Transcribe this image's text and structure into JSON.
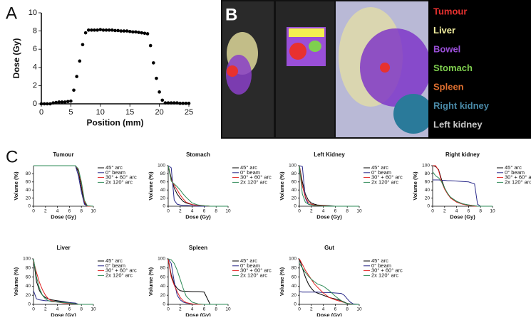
{
  "panel_labels": [
    "A",
    "B",
    "C"
  ],
  "panel_b": {
    "legend": [
      {
        "name": "Tumour",
        "color": "#e8312f"
      },
      {
        "name": "Liver",
        "color": "#f4f0a0"
      },
      {
        "name": "Bowel",
        "color": "#9a4fd8"
      },
      {
        "name": "Stomach",
        "color": "#7fd04f"
      },
      {
        "name": "Spleen",
        "color": "#e07030"
      },
      {
        "name": "Right kidney",
        "color": "#4a8aa8"
      },
      {
        "name": "Left kidney",
        "color": "#c8c8c8"
      }
    ]
  },
  "chart_data": [
    {
      "type": "scatter",
      "xlabel": "Position (mm)",
      "ylabel": "Dose (Gy)",
      "color": "#000000",
      "xlim": [
        0,
        25
      ],
      "xticks": [
        0,
        5,
        10,
        15,
        20,
        25
      ],
      "ylim": [
        0,
        10
      ],
      "yticks": [
        0,
        2,
        4,
        6,
        8,
        10
      ],
      "x": [
        0,
        0.5,
        1,
        1.5,
        2,
        2.5,
        3,
        3.5,
        4,
        4.5,
        5,
        5.5,
        6,
        6.5,
        7,
        7.5,
        8,
        8.5,
        9,
        9.5,
        10,
        10.5,
        11,
        11.5,
        12,
        12.5,
        13,
        13.5,
        14,
        14.5,
        15,
        15.5,
        16,
        16.5,
        17,
        17.5,
        18,
        18.5,
        19,
        19.5,
        20,
        20.5,
        21,
        21.5,
        22,
        22.5,
        23,
        23.5,
        24,
        24.5,
        25
      ],
      "values": [
        0,
        0,
        0,
        0,
        0.1,
        0.15,
        0.2,
        0.2,
        0.2,
        0.25,
        0.3,
        1.5,
        3,
        4.7,
        6.5,
        7.8,
        8.1,
        8.1,
        8.1,
        8.1,
        8.15,
        8.1,
        8.1,
        8.1,
        8.1,
        8.05,
        8.05,
        8,
        8,
        8,
        7.95,
        7.9,
        7.9,
        7.85,
        7.8,
        7.75,
        7.7,
        6.4,
        4.5,
        2.8,
        1.3,
        0.4,
        0.1,
        0.1,
        0.1,
        0.1,
        0.1,
        0.05,
        0.05,
        0.05,
        0.05
      ]
    },
    {
      "type": "line",
      "title": "Tumour",
      "xlabel": "Dose (Gy)",
      "ylabel": "Volume (%)",
      "xlim": [
        0,
        10
      ],
      "xticks": [
        0,
        2,
        4,
        6,
        8,
        10
      ],
      "ylim": [
        0,
        100
      ],
      "yticks": [
        0,
        20,
        40,
        60,
        80
      ],
      "x": [
        0,
        0.5,
        1,
        1.5,
        2,
        2.5,
        3,
        4,
        5,
        6,
        7,
        7.5,
        8,
        8.5,
        9,
        10
      ],
      "series": [
        {
          "name": "45° arc",
          "color": "#000000",
          "values": [
            100,
            100,
            100,
            100,
            100,
            100,
            100,
            100,
            100,
            100,
            100,
            85,
            45,
            8,
            0,
            0
          ]
        },
        {
          "name": "0° beam",
          "color": "#2a2a8a",
          "values": [
            100,
            100,
            100,
            100,
            100,
            100,
            100,
            100,
            100,
            100,
            100,
            75,
            35,
            5,
            0,
            0
          ]
        },
        {
          "name": "30° + 60° arc",
          "color": "#e02020",
          "values": [
            100,
            100,
            100,
            100,
            100,
            100,
            100,
            100,
            100,
            100,
            100,
            90,
            55,
            12,
            0,
            0
          ]
        },
        {
          "name": "2x 120° arc",
          "color": "#2e8b57",
          "values": [
            100,
            100,
            100,
            100,
            100,
            100,
            100,
            100,
            100,
            100,
            100,
            92,
            60,
            15,
            1,
            0
          ]
        }
      ]
    },
    {
      "type": "line",
      "title": "Stomach",
      "xlabel": "Dose (Gy)",
      "ylabel": "Volume (%)",
      "xlim": [
        0,
        10
      ],
      "xticks": [
        0,
        2,
        4,
        6,
        8,
        10
      ],
      "ylim": [
        0,
        100
      ],
      "yticks": [
        0,
        20,
        40,
        60,
        80,
        100
      ],
      "x": [
        0,
        0.5,
        1,
        1.5,
        2,
        2.5,
        3,
        4,
        5,
        6,
        7,
        7.5,
        8,
        8.5,
        9,
        10
      ],
      "series": [
        {
          "name": "45° arc",
          "color": "#000000",
          "values": [
            100,
            70,
            45,
            30,
            20,
            12,
            8,
            4,
            2,
            1,
            0,
            0,
            0,
            0,
            0,
            0
          ]
        },
        {
          "name": "0° beam",
          "color": "#2a2a8a",
          "values": [
            100,
            95,
            15,
            5,
            3,
            2,
            2,
            1,
            0,
            0,
            0,
            0,
            0,
            0,
            0,
            0
          ]
        },
        {
          "name": "30° + 60° arc",
          "color": "#e02020",
          "values": [
            100,
            65,
            52,
            40,
            28,
            18,
            10,
            4,
            2,
            1,
            0,
            0,
            0,
            0,
            0,
            0
          ]
        },
        {
          "name": "2x 120° arc",
          "color": "#2e8b57",
          "values": [
            100,
            62,
            55,
            48,
            40,
            30,
            22,
            8,
            3,
            1,
            0,
            0,
            0,
            0,
            0,
            0
          ]
        }
      ]
    },
    {
      "type": "line",
      "title": "Left Kidney",
      "xlabel": "Dose (Gy)",
      "ylabel": "Volume (%)",
      "xlim": [
        0,
        10
      ],
      "xticks": [
        0,
        2,
        4,
        6,
        8,
        10
      ],
      "ylim": [
        0,
        100
      ],
      "yticks": [
        0,
        20,
        40,
        60,
        80,
        100
      ],
      "x": [
        0,
        0.5,
        1,
        1.5,
        2,
        2.5,
        3,
        4,
        5,
        6,
        7,
        7.5,
        8,
        8.5,
        9,
        10
      ],
      "series": [
        {
          "name": "45° arc",
          "color": "#000000",
          "values": [
            100,
            60,
            30,
            15,
            8,
            5,
            3,
            2,
            1,
            0,
            0,
            0,
            0,
            0,
            0,
            0
          ]
        },
        {
          "name": "0° beam",
          "color": "#2a2a8a",
          "values": [
            100,
            98,
            20,
            5,
            3,
            2,
            1,
            0,
            0,
            0,
            0,
            0,
            0,
            0,
            0,
            0
          ]
        },
        {
          "name": "30° + 60° arc",
          "color": "#e02020",
          "values": [
            100,
            50,
            22,
            10,
            5,
            3,
            2,
            1,
            0,
            0,
            0,
            0,
            0,
            0,
            0,
            0
          ]
        },
        {
          "name": "2x 120° arc",
          "color": "#2e8b57",
          "values": [
            100,
            30,
            10,
            5,
            3,
            2,
            1,
            0,
            0,
            0,
            0,
            0,
            0,
            0,
            0,
            0
          ]
        }
      ]
    },
    {
      "type": "line",
      "title": "Right kidney",
      "xlabel": "Dose (Gy)",
      "ylabel": "Volume (%)",
      "xlim": [
        0,
        10
      ],
      "xticks": [
        0,
        2,
        4,
        6,
        8,
        10
      ],
      "ylim": [
        0,
        100
      ],
      "yticks": [
        0,
        20,
        40,
        60,
        80,
        100
      ],
      "x": [
        0,
        0.5,
        1,
        1.5,
        2,
        2.5,
        3,
        4,
        5,
        6,
        7,
        7.5,
        8,
        8.5,
        9,
        10
      ],
      "series": [
        {
          "name": "45° arc",
          "color": "#000000",
          "values": [
            100,
            98,
            90,
            65,
            45,
            30,
            22,
            12,
            6,
            3,
            1,
            0,
            0,
            0,
            0,
            0
          ]
        },
        {
          "name": "0° beam",
          "color": "#2a2a8a",
          "values": [
            65,
            65,
            65,
            64,
            64,
            63,
            63,
            62,
            61,
            60,
            55,
            5,
            0,
            0,
            0,
            0
          ]
        },
        {
          "name": "30° + 60° arc",
          "color": "#e02020",
          "values": [
            100,
            100,
            88,
            60,
            42,
            30,
            20,
            10,
            5,
            2,
            0,
            0,
            0,
            0,
            0,
            0
          ]
        },
        {
          "name": "2x 120° arc",
          "color": "#2e8b57",
          "values": [
            85,
            75,
            70,
            60,
            45,
            32,
            22,
            12,
            6,
            3,
            1,
            0,
            0,
            0,
            0,
            0
          ]
        }
      ]
    },
    {
      "type": "line",
      "title": "Liver",
      "xlabel": "Dose (Gy)",
      "ylabel": "Volume (%)",
      "xlim": [
        0,
        10
      ],
      "xticks": [
        0,
        2,
        4,
        6,
        8,
        10
      ],
      "ylim": [
        0,
        100
      ],
      "yticks": [
        0,
        20,
        40,
        60,
        80,
        100
      ],
      "x": [
        0,
        0.5,
        1,
        1.5,
        2,
        2.5,
        3,
        4,
        5,
        6,
        7,
        7.5,
        8,
        8.5,
        9,
        10
      ],
      "series": [
        {
          "name": "45° arc",
          "color": "#000000",
          "values": [
            100,
            50,
            30,
            20,
            15,
            12,
            10,
            8,
            6,
            4,
            2,
            0,
            0,
            0,
            0,
            0
          ]
        },
        {
          "name": "0° beam",
          "color": "#2a2a8a",
          "values": [
            30,
            12,
            10,
            9,
            8,
            8,
            7,
            6,
            5,
            4,
            3,
            0,
            0,
            0,
            0,
            0
          ]
        },
        {
          "name": "30° + 60° arc",
          "color": "#e02020",
          "values": [
            95,
            70,
            48,
            32,
            20,
            12,
            8,
            5,
            3,
            2,
            1,
            0,
            0,
            0,
            0,
            0
          ]
        },
        {
          "name": "2x 120° arc",
          "color": "#2e8b57",
          "values": [
            100,
            60,
            35,
            20,
            12,
            8,
            6,
            5,
            4,
            3,
            1,
            0,
            0,
            0,
            0,
            0
          ]
        }
      ]
    },
    {
      "type": "line",
      "title": "Spleen",
      "xlabel": "Dose (Gy)",
      "ylabel": "Volume (%)",
      "xlim": [
        0,
        10
      ],
      "xticks": [
        0,
        2,
        4,
        6,
        8,
        10
      ],
      "ylim": [
        0,
        100
      ],
      "yticks": [
        0,
        20,
        40,
        60,
        80,
        100
      ],
      "x": [
        0,
        0.5,
        1,
        1.5,
        2,
        2.5,
        3,
        4,
        5,
        6,
        7,
        7.5,
        8,
        8.5,
        9,
        10
      ],
      "series": [
        {
          "name": "45° arc",
          "color": "#000000",
          "values": [
            100,
            65,
            45,
            35,
            30,
            29,
            29,
            28,
            28,
            27,
            0,
            0,
            0,
            0,
            0,
            0
          ]
        },
        {
          "name": "0° beam",
          "color": "#2a2a8a",
          "values": [
            100,
            90,
            50,
            20,
            10,
            5,
            3,
            1,
            0,
            0,
            0,
            0,
            0,
            0,
            0,
            0
          ]
        },
        {
          "name": "30° + 60° arc",
          "color": "#e02020",
          "values": [
            100,
            60,
            42,
            28,
            15,
            8,
            4,
            1,
            0,
            0,
            0,
            0,
            0,
            0,
            0,
            0
          ]
        },
        {
          "name": "2x 120° arc",
          "color": "#2e8b57",
          "values": [
            100,
            98,
            90,
            75,
            55,
            35,
            18,
            5,
            1,
            0,
            0,
            0,
            0,
            0,
            0,
            0
          ]
        }
      ]
    },
    {
      "type": "line",
      "title": "Gut",
      "xlabel": "Dose (Gy)",
      "ylabel": "Volume (%)",
      "xlim": [
        0,
        10
      ],
      "xticks": [
        0,
        2,
        4,
        6,
        8,
        10
      ],
      "ylim": [
        0,
        100
      ],
      "yticks": [
        0,
        20,
        40,
        60,
        80,
        100
      ],
      "x": [
        0,
        0.5,
        1,
        1.5,
        2,
        2.5,
        3,
        4,
        5,
        6,
        7,
        7.5,
        8,
        8.5,
        9,
        10
      ],
      "series": [
        {
          "name": "45° arc",
          "color": "#000000",
          "values": [
            100,
            80,
            60,
            45,
            35,
            28,
            25,
            20,
            15,
            12,
            8,
            5,
            2,
            1,
            0,
            0
          ]
        },
        {
          "name": "0° beam",
          "color": "#2a2a8a",
          "values": [
            28,
            27,
            27,
            27,
            27,
            27,
            27,
            26,
            26,
            25,
            24,
            20,
            12,
            5,
            1,
            0
          ]
        },
        {
          "name": "30° + 60° arc",
          "color": "#e02020",
          "values": [
            100,
            88,
            75,
            65,
            55,
            45,
            38,
            25,
            15,
            10,
            6,
            4,
            2,
            1,
            0,
            0
          ]
        },
        {
          "name": "2x 120° arc",
          "color": "#2e8b57",
          "values": [
            90,
            80,
            70,
            62,
            55,
            50,
            45,
            40,
            30,
            18,
            8,
            4,
            2,
            1,
            0,
            0
          ]
        }
      ]
    }
  ]
}
